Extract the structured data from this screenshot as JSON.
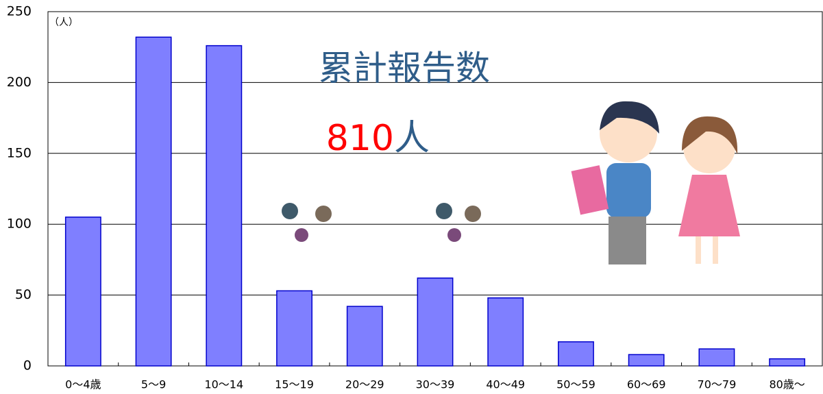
{
  "chart_data": {
    "type": "bar",
    "title": "累計報告数",
    "total": "810",
    "total_unit": "人",
    "y_unit": "（人）",
    "categories": [
      "0～4歳",
      "5～9",
      "10～14",
      "15～19",
      "20～29",
      "30～39",
      "40～49",
      "50～59",
      "60～69",
      "70～79",
      "80歳～"
    ],
    "values": [
      105,
      232,
      226,
      53,
      42,
      62,
      48,
      17,
      8,
      12,
      5
    ],
    "color": "#7f7fff",
    "ylim": [
      0,
      250
    ],
    "yticks": [
      0,
      50,
      100,
      150,
      200,
      250
    ],
    "grid": true
  }
}
